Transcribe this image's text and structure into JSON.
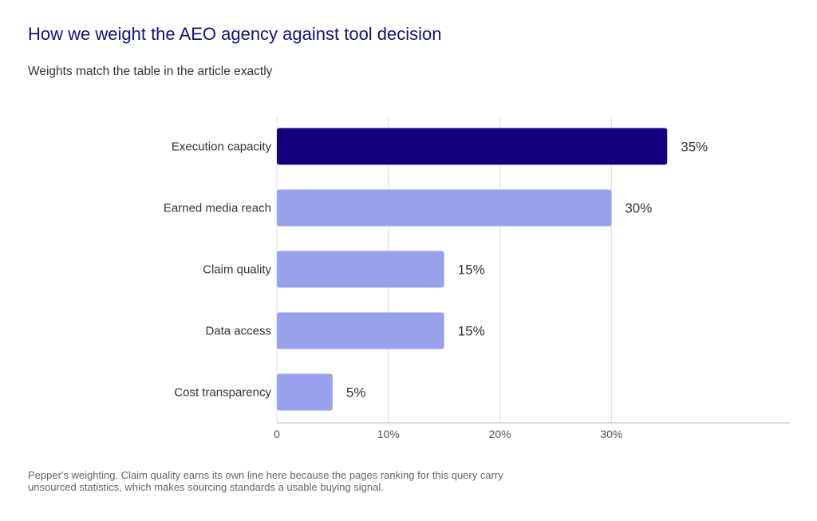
{
  "header": {
    "title": "How we weight the AEO agency against tool decision",
    "subtitle": "Weights match the table in the article exactly"
  },
  "footnote": "Pepper's weighting. Claim quality earns its own line here because the pages ranking for this query carry unsourced statistics, which makes sourcing standards a usable buying signal.",
  "colors": {
    "highlight": "#13007e",
    "bar": "#9aa1ec",
    "grid": "#dddddd",
    "axis": "#bbbbbb"
  },
  "chart_data": {
    "type": "bar",
    "orientation": "horizontal",
    "categories": [
      "Execution capacity",
      "Earned media reach",
      "Claim quality",
      "Data access",
      "Cost transparency"
    ],
    "values": [
      35,
      30,
      15,
      15,
      5
    ],
    "value_labels": [
      "35%",
      "30%",
      "15%",
      "15%",
      "5%"
    ],
    "highlighted_index": 0,
    "xlim": [
      0,
      46
    ],
    "xticks": [
      0,
      10,
      20,
      30
    ],
    "xtick_labels": [
      "0",
      "10%",
      "20%",
      "30%"
    ],
    "grid": true
  }
}
